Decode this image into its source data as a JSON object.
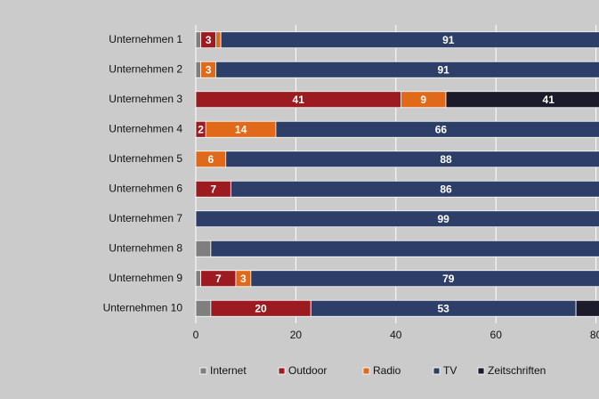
{
  "chart_data": {
    "type": "stacked-bar-horizontal",
    "categories": [
      "Unternehmen 1",
      "Unternehmen 2",
      "Unternehmen 3",
      "Unternehmen 4",
      "Unternehmen 5",
      "Unternehmen 6",
      "Unternehmen 7",
      "Unternehmen 8",
      "Unternehmen 9",
      "Unternehmen 10"
    ],
    "series": [
      {
        "name": "Internet",
        "color": "#7f7f7f",
        "values": [
          1,
          1,
          0,
          0,
          0,
          0,
          0,
          3,
          1,
          3
        ],
        "value_labels": [
          null,
          null,
          null,
          null,
          null,
          null,
          null,
          null,
          null,
          null
        ]
      },
      {
        "name": "Outdoor",
        "color": "#9b1b20",
        "values": [
          3,
          0,
          41,
          2,
          0,
          7,
          0,
          0,
          7,
          20
        ],
        "value_labels": [
          "3",
          null,
          "41",
          "2",
          null,
          "7",
          null,
          null,
          "7",
          "20"
        ]
      },
      {
        "name": "Radio",
        "color": "#e0691a",
        "values": [
          1,
          3,
          9,
          14,
          6,
          0,
          0,
          0,
          3,
          0
        ],
        "value_labels": [
          null,
          "3",
          "9",
          "14",
          "6",
          null,
          null,
          null,
          "3",
          null
        ]
      },
      {
        "name": "TV",
        "color": "#2d3f68",
        "values": [
          91,
          91,
          0,
          66,
          88,
          86,
          99,
          97,
          79,
          53
        ],
        "value_labels": [
          "91",
          "91",
          null,
          "66",
          "88",
          "86",
          "99",
          null,
          "79",
          "53"
        ]
      },
      {
        "name": "Zeitschriften",
        "color": "#1b1b2c",
        "values": [
          4,
          5,
          41,
          10,
          6,
          7,
          1,
          0,
          10,
          24
        ],
        "value_labels": [
          null,
          null,
          "41",
          null,
          null,
          null,
          null,
          null,
          null,
          null
        ]
      }
    ],
    "xlim": [
      0,
      100
    ],
    "xticks": [
      0,
      20,
      40,
      60,
      80
    ],
    "grid": true
  }
}
